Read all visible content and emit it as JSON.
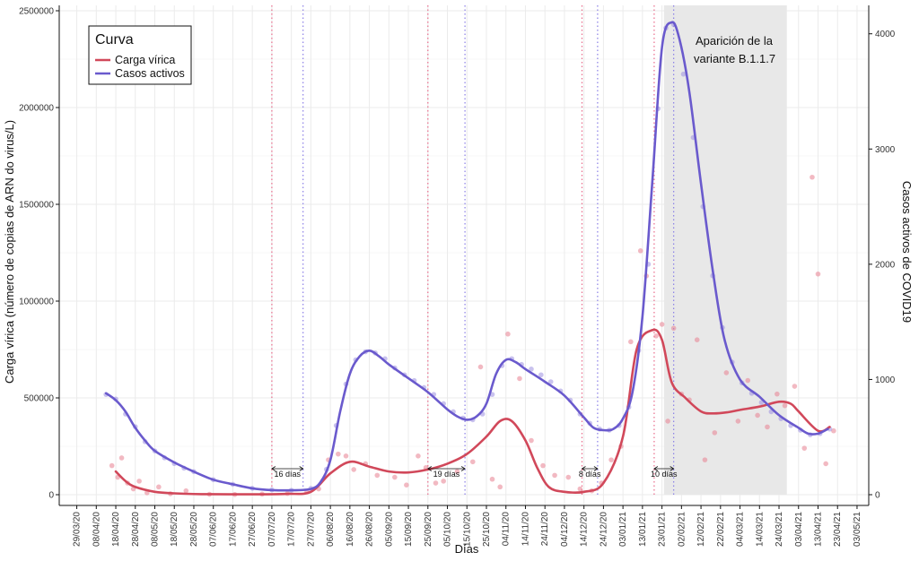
{
  "chart_data": {
    "type": "line",
    "xlabel": "Días",
    "ylabel_left": "Carga vírica (número de copias de ARN do virus/L)",
    "ylabel_right": "Casos activos de COVID19",
    "ylim_left": [
      0,
      2500000
    ],
    "ylim_right": [
      0,
      4200
    ],
    "y_ticks_left": [
      "0",
      "500000",
      "1000000",
      "1500000",
      "2000000",
      "2500000"
    ],
    "y_ticks_right": [
      "0",
      "1000",
      "2000",
      "3000",
      "4000"
    ],
    "x_ticks": [
      "29/03/20",
      "08/04/20",
      "18/04/20",
      "28/04/20",
      "08/05/20",
      "18/05/20",
      "28/05/20",
      "07/06/20",
      "17/06/20",
      "27/06/20",
      "07/07/20",
      "17/07/20",
      "27/07/20",
      "06/08/20",
      "16/08/20",
      "26/08/20",
      "05/09/20",
      "15/09/20",
      "25/09/20",
      "05/10/20",
      "15/10/20",
      "25/10/20",
      "04/11/20",
      "14/11/20",
      "24/11/20",
      "04/12/20",
      "14/12/20",
      "24/12/20",
      "03/01/21",
      "13/01/21",
      "23/01/21",
      "02/02/21",
      "12/02/21",
      "22/02/21",
      "04/03/21",
      "14/03/21",
      "24/03/21",
      "03/04/21",
      "13/04/21",
      "23/04/21",
      "03/05/21"
    ],
    "grid": true,
    "legend_position": "top-left",
    "legend": {
      "title": "Curva",
      "items": [
        {
          "label": "Carga vírica",
          "color": "#d1485a"
        },
        {
          "label": "Casos activos",
          "color": "#6a5acd"
        }
      ]
    },
    "series": [
      {
        "name": "Carga vírica",
        "axis": "left",
        "color": "#d1485a",
        "x": [
          "2020-04-18",
          "2020-04-23",
          "2020-04-28",
          "2020-05-08",
          "2020-05-18",
          "2020-06-01",
          "2020-06-15",
          "2020-07-01",
          "2020-07-15",
          "2020-07-27",
          "2020-08-06",
          "2020-08-16",
          "2020-08-26",
          "2020-09-05",
          "2020-09-15",
          "2020-09-25",
          "2020-10-05",
          "2020-10-15",
          "2020-10-25",
          "2020-11-01",
          "2020-11-07",
          "2020-11-14",
          "2020-11-20",
          "2020-11-26",
          "2020-12-04",
          "2020-12-14",
          "2020-12-24",
          "2021-01-03",
          "2021-01-10",
          "2021-01-18",
          "2021-01-23",
          "2021-01-28",
          "2021-02-04",
          "2021-02-12",
          "2021-02-18",
          "2021-02-25",
          "2021-03-05",
          "2021-03-14",
          "2021-03-24",
          "2021-03-30",
          "2021-04-03",
          "2021-04-13",
          "2021-04-19"
        ],
        "y": [
          120000,
          70000,
          40000,
          15000,
          7000,
          3000,
          2000,
          2000,
          4000,
          15000,
          110000,
          170000,
          145000,
          120000,
          115000,
          130000,
          160000,
          210000,
          300000,
          380000,
          380000,
          280000,
          140000,
          40000,
          15000,
          15000,
          60000,
          300000,
          750000,
          850000,
          800000,
          580000,
          500000,
          430000,
          420000,
          425000,
          440000,
          455000,
          480000,
          470000,
          430000,
          330000,
          350000
        ]
      },
      {
        "name": "Casos activos",
        "axis": "right",
        "color": "#6a5acd",
        "x": [
          "2020-04-13",
          "2020-04-18",
          "2020-04-23",
          "2020-04-28",
          "2020-05-03",
          "2020-05-08",
          "2020-05-18",
          "2020-05-28",
          "2020-06-07",
          "2020-06-17",
          "2020-06-27",
          "2020-07-07",
          "2020-07-17",
          "2020-07-27",
          "2020-08-01",
          "2020-08-06",
          "2020-08-11",
          "2020-08-16",
          "2020-08-21",
          "2020-08-26",
          "2020-08-31",
          "2020-09-05",
          "2020-09-15",
          "2020-09-25",
          "2020-10-05",
          "2020-10-10",
          "2020-10-15",
          "2020-10-20",
          "2020-10-25",
          "2020-10-30",
          "2020-11-04",
          "2020-11-09",
          "2020-11-14",
          "2020-11-24",
          "2020-12-04",
          "2020-12-14",
          "2020-12-19",
          "2020-12-24",
          "2020-12-29",
          "2021-01-03",
          "2021-01-08",
          "2021-01-13",
          "2021-01-18",
          "2021-01-23",
          "2021-01-28",
          "2021-02-01",
          "2021-02-06",
          "2021-02-12",
          "2021-02-18",
          "2021-02-24",
          "2021-03-04",
          "2021-03-14",
          "2021-03-24",
          "2021-04-03",
          "2021-04-08",
          "2021-04-13",
          "2021-04-18"
        ],
        "y": [
          880,
          820,
          720,
          580,
          470,
          380,
          280,
          200,
          130,
          90,
          55,
          40,
          38,
          50,
          110,
          300,
          720,
          1050,
          1200,
          1250,
          1200,
          1130,
          1010,
          890,
          740,
          680,
          650,
          680,
          790,
          1050,
          1170,
          1150,
          1090,
          980,
          860,
          670,
          580,
          560,
          570,
          660,
          900,
          1550,
          2700,
          3880,
          4100,
          3950,
          3500,
          2700,
          1950,
          1350,
          1000,
          850,
          690,
          580,
          530,
          530,
          570
        ]
      }
    ],
    "scatter": [
      {
        "name": "Carga vírica",
        "color": "#e88090",
        "axis": "left",
        "x": [
          "2020-04-16",
          "2020-04-19",
          "2020-04-21",
          "2020-04-24",
          "2020-04-27",
          "2020-04-30",
          "2020-05-04",
          "2020-05-10",
          "2020-05-16",
          "2020-05-24",
          "2020-06-05",
          "2020-06-18",
          "2020-07-02",
          "2020-07-15",
          "2020-07-25",
          "2020-07-31",
          "2020-08-05",
          "2020-08-10",
          "2020-08-14",
          "2020-08-18",
          "2020-08-24",
          "2020-08-30",
          "2020-09-08",
          "2020-09-14",
          "2020-09-20",
          "2020-09-24",
          "2020-09-29",
          "2020-10-03",
          "2020-10-10",
          "2020-10-18",
          "2020-10-22",
          "2020-10-28",
          "2020-11-01",
          "2020-11-05",
          "2020-11-11",
          "2020-11-17",
          "2020-11-23",
          "2020-11-29",
          "2020-12-06",
          "2020-12-12",
          "2020-12-18",
          "2020-12-23",
          "2020-12-28",
          "2021-01-02",
          "2021-01-07",
          "2021-01-12",
          "2021-01-15",
          "2021-01-20",
          "2021-01-23",
          "2021-01-26",
          "2021-01-29",
          "2021-02-02",
          "2021-02-06",
          "2021-02-10",
          "2021-02-14",
          "2021-02-19",
          "2021-02-25",
          "2021-03-03",
          "2021-03-08",
          "2021-03-13",
          "2021-03-18",
          "2021-03-23",
          "2021-03-27",
          "2021-04-01",
          "2021-04-06",
          "2021-04-10",
          "2021-04-13",
          "2021-04-17",
          "2021-04-21"
        ],
        "y": [
          150000,
          90000,
          190000,
          60000,
          30000,
          70000,
          10000,
          40000,
          5000,
          20000,
          2000,
          1000,
          3000,
          6000,
          15000,
          30000,
          180000,
          210000,
          200000,
          130000,
          160000,
          100000,
          90000,
          50000,
          200000,
          140000,
          60000,
          70000,
          120000,
          170000,
          660000,
          80000,
          40000,
          830000,
          600000,
          280000,
          150000,
          100000,
          90000,
          30000,
          20000,
          60000,
          180000,
          250000,
          790000,
          1260000,
          1130000,
          820000,
          880000,
          380000,
          860000,
          520000,
          490000,
          800000,
          180000,
          320000,
          630000,
          380000,
          590000,
          410000,
          350000,
          520000,
          460000,
          560000,
          240000,
          1640000,
          1140000,
          160000,
          330000
        ]
      },
      {
        "name": "Casos activos",
        "color": "#9d8fe0",
        "axis": "right",
        "x": [
          "2020-04-13",
          "2020-04-18",
          "2020-04-23",
          "2020-04-28",
          "2020-05-03",
          "2020-05-08",
          "2020-05-13",
          "2020-05-18",
          "2020-05-23",
          "2020-05-28",
          "2020-06-07",
          "2020-06-17",
          "2020-06-27",
          "2020-07-07",
          "2020-07-17",
          "2020-07-27",
          "2020-08-04",
          "2020-08-09",
          "2020-08-14",
          "2020-08-19",
          "2020-08-24",
          "2020-08-29",
          "2020-09-03",
          "2020-09-08",
          "2020-09-13",
          "2020-09-18",
          "2020-09-23",
          "2020-09-28",
          "2020-10-03",
          "2020-10-08",
          "2020-10-13",
          "2020-10-18",
          "2020-10-23",
          "2020-10-28",
          "2020-11-02",
          "2020-11-07",
          "2020-11-12",
          "2020-11-17",
          "2020-11-22",
          "2020-11-27",
          "2020-12-02",
          "2020-12-07",
          "2020-12-12",
          "2020-12-17",
          "2020-12-22",
          "2020-12-27",
          "2021-01-01",
          "2021-01-06",
          "2021-01-11",
          "2021-01-16",
          "2021-01-21",
          "2021-01-25",
          "2021-01-29",
          "2021-02-03",
          "2021-02-08",
          "2021-02-13",
          "2021-02-18",
          "2021-02-23",
          "2021-02-28",
          "2021-03-05",
          "2021-03-10",
          "2021-03-15",
          "2021-03-20",
          "2021-03-25",
          "2021-03-30",
          "2021-04-04",
          "2021-04-09",
          "2021-04-14",
          "2021-04-19"
        ],
        "y": [
          870,
          830,
          700,
          590,
          460,
          380,
          320,
          270,
          230,
          200,
          130,
          90,
          55,
          42,
          38,
          55,
          220,
          600,
          960,
          1170,
          1240,
          1230,
          1180,
          1100,
          1040,
          990,
          930,
          870,
          790,
          720,
          665,
          650,
          700,
          870,
          1120,
          1180,
          1130,
          1090,
          1040,
          980,
          900,
          820,
          700,
          620,
          570,
          560,
          600,
          760,
          1250,
          2000,
          3350,
          4050,
          4080,
          3650,
          3100,
          2500,
          1900,
          1450,
          1150,
          970,
          880,
          800,
          720,
          660,
          600,
          560,
          520,
          530,
          570
        ]
      }
    ],
    "event_lines": [
      {
        "date": "2020-07-07",
        "color": "#e86a8a"
      },
      {
        "date": "2020-07-23",
        "color": "#8a7ee6"
      },
      {
        "date": "2020-09-25",
        "color": "#e86a8a"
      },
      {
        "date": "2020-10-14",
        "color": "#8a7ee6"
      },
      {
        "date": "2020-12-13",
        "color": "#e86a8a"
      },
      {
        "date": "2020-12-21",
        "color": "#8a7ee6"
      },
      {
        "date": "2021-01-19",
        "color": "#e86a8a"
      },
      {
        "date": "2021-01-29",
        "color": "#8a7ee6"
      }
    ],
    "lag_annotations": [
      {
        "start": "2020-07-07",
        "end": "2020-07-23",
        "label": "16 días"
      },
      {
        "start": "2020-09-25",
        "end": "2020-10-14",
        "label": "19 días"
      },
      {
        "start": "2020-12-13",
        "end": "2020-12-21",
        "label": "8 días"
      },
      {
        "start": "2021-01-19",
        "end": "2021-01-29",
        "label": "10 días"
      }
    ],
    "shaded_region": {
      "start": "2021-01-24",
      "end": "2021-03-28",
      "color": "#e8e8e8"
    },
    "annotations": [
      {
        "line1": "Aparición de la",
        "line2": "variante B.1.1.7"
      }
    ]
  }
}
